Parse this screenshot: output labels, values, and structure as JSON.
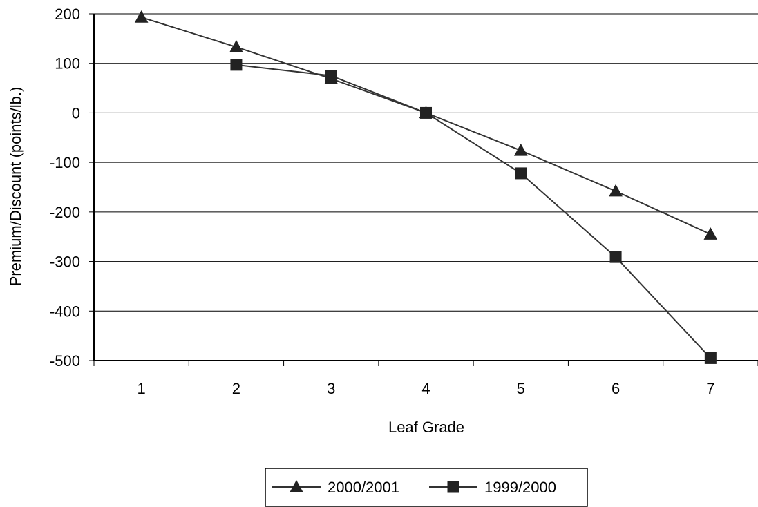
{
  "chart_data": {
    "type": "line",
    "xlabel": "Leaf Grade",
    "ylabel": "Premium/Discount (points/lb.)",
    "categories": [
      "1",
      "2",
      "3",
      "4",
      "5",
      "6",
      "7"
    ],
    "x": [
      1,
      2,
      3,
      4,
      5,
      6,
      7
    ],
    "ylim": [
      -500,
      200
    ],
    "yticks": [
      200,
      100,
      0,
      -100,
      -200,
      -300,
      -400,
      -500
    ],
    "ytick_labels": [
      "200",
      "100",
      "0",
      "-100",
      "-200",
      "-300",
      "-400",
      "-500"
    ],
    "grid": true,
    "legend_position": "bottom",
    "series": [
      {
        "name": "2000/2001",
        "marker": "triangle",
        "x": [
          1,
          2,
          3,
          4,
          5,
          6,
          7
        ],
        "values": [
          193,
          133,
          69,
          0,
          -76,
          -158,
          -245
        ]
      },
      {
        "name": "1999/2000",
        "marker": "square",
        "x": [
          2,
          3,
          4,
          5,
          6,
          7
        ],
        "values": [
          97,
          75,
          0,
          -122,
          -291,
          -495
        ]
      }
    ]
  }
}
